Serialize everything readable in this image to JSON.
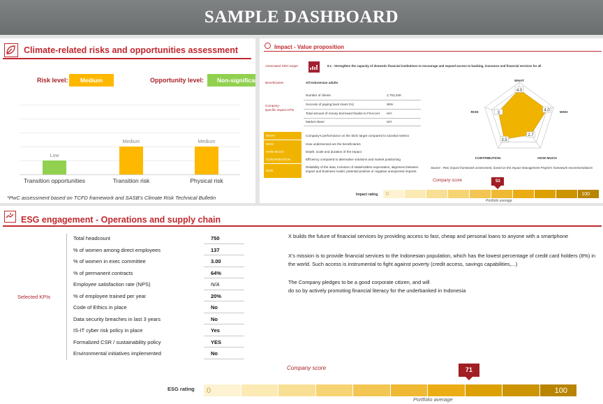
{
  "header": {
    "title": "SAMPLE DASHBOARD"
  },
  "climate": {
    "title": "Climate-related risks and opportunities assessment",
    "risk_label": "Risk level:",
    "risk_value": "Medium",
    "opportunity_label": "Opportunity level:",
    "opportunity_value": "Non-significant",
    "footnote": "*PwC assessment based on TCFD framework and SASB's Climate Risk Technical Bulletin",
    "colors": {
      "orange": "#ffb800",
      "green": "#92d050"
    },
    "chart_data": {
      "type": "bar",
      "categories": [
        "Transition opportunities",
        "Transition risk",
        "Physical risk"
      ],
      "value_labels": [
        "Low",
        "Medium",
        "Medium"
      ],
      "levels": [
        1,
        2,
        2
      ],
      "colors": [
        "#92d050",
        "#ffb800",
        "#ffb800"
      ]
    }
  },
  "impact": {
    "title": "Impact - Value proposition",
    "sdg_label": "Associated SDG target",
    "sdg_target": "8.1 - Strengthen the capacity of domestic financial institutions to encourage and expand access to banking, insurance and financial services for all",
    "beneficiaries_label": "Beneficiaries",
    "beneficiaries_value": "All Indonesian adults",
    "kpi_label_1": "Company-",
    "kpi_label_2": "specific impact KPIs",
    "kpis": [
      {
        "label": "Number of clients",
        "value": "2,753,349"
      },
      {
        "label": "Success of paying back loans (%)",
        "value": "96%"
      },
      {
        "label": "Total amount of money borrowed thanks to FinAccel",
        "value": "N/A"
      },
      {
        "label": "Market share",
        "value": "N/A"
      }
    ],
    "dimensions": [
      {
        "key": "WHAT",
        "desc": "Company's performance on the SDG target compared to societal metrics"
      },
      {
        "key": "WHO",
        "desc": "How underserved are the beneficiaries"
      },
      {
        "key": "HOW MUCH",
        "desc": "Depth, scale and duration of the impact"
      },
      {
        "key": "CONTRIBUTION",
        "desc": "Efficiency compared to alternative solutions and market positioning"
      },
      {
        "key": "RISK",
        "desc": "Reliability of the data, inclusion of stakeholders expectation, alignment between impact and business model, potential positive or negative unexpected impacts"
      }
    ],
    "source": "Source : PwC impact framework assessment, based on the Impact Management Project's framework recommendations",
    "radar": {
      "axes": [
        "WHAT",
        "WHO",
        "HOW MUCH",
        "CONTRIBUTION",
        "RISK"
      ],
      "values": [
        4.0,
        4.0,
        2.7,
        3.5,
        3.0
      ],
      "value_labels": [
        "4.0",
        "4.0",
        "2.7",
        "3.5",
        "3"
      ],
      "max": 5,
      "color": "#f0b400"
    },
    "company_score_label": "Company score",
    "rating_label": "Impact rating",
    "score": 53,
    "scale_min": "0",
    "scale_max": "100",
    "portfolio_label": "Portfolio average"
  },
  "esg": {
    "title": "ESG engagement - Operations and supply chain",
    "selected_label": "Selected KPIs",
    "kpis": [
      {
        "label": "Total headcount",
        "value": "750"
      },
      {
        "label": "% of women among direct employees",
        "value": "137"
      },
      {
        "label": "% of women in exec committee",
        "value": "3.00"
      },
      {
        "label": "% of permanent contracts",
        "value": "64%"
      },
      {
        "label": "Employee satisfaction rate (NPS)",
        "value": "N/A"
      },
      {
        "label": "% of employee trained per year",
        "value": "20%"
      },
      {
        "label": "Code of Ethics in place",
        "value": "No"
      },
      {
        "label": "Data security breaches in last 3 years",
        "value": "No"
      },
      {
        "label": "IS-IT cyber risk policy in place",
        "value": "Yes"
      },
      {
        "label": "Formalized CSR / sustainability policy",
        "value": "YES"
      },
      {
        "label": "Environmental initiatives implemented",
        "value": "No"
      }
    ],
    "text_1": "X builds the future of financial services by providing access to fast, cheap and personal loans to anyone with a smartphone",
    "text_2": "X's mission is to provide financial services to the Indonesian population, which has the lowest percentage of credit card holders (8%) in the world. Such access is instrumental to fight against poverty (credit access, savings capabilities,...)",
    "text_3a": "The Company pledges to be a good corporate citizen, and will",
    "text_3b": "do so by actively promoting financial literacy for the underbanked in Indonesia",
    "company_score_label": "Company score",
    "rating_label": "ESG rating",
    "score": 71,
    "scale_min": "0",
    "scale_max": "100",
    "portfolio_label": "Portfolio average"
  }
}
